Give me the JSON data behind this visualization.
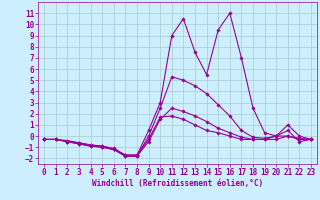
{
  "xlabel": "Windchill (Refroidissement éolien,°C)",
  "bg_color": "#cceeff",
  "grid_color": "#aacccc",
  "line_color": "#990099",
  "x": [
    0,
    1,
    2,
    3,
    4,
    5,
    6,
    7,
    8,
    9,
    10,
    11,
    12,
    13,
    14,
    15,
    16,
    17,
    18,
    19,
    20,
    21,
    22,
    23
  ],
  "series": [
    [
      -0.3,
      -0.3,
      -0.5,
      -0.6,
      -0.8,
      -0.9,
      -1.2,
      -1.7,
      -1.7,
      -0.3,
      1.7,
      1.8,
      1.5,
      1.0,
      0.5,
      0.3,
      0.0,
      -0.3,
      -0.3,
      -0.3,
      -0.3,
      0.0,
      -0.2,
      -0.3
    ],
    [
      -0.3,
      -0.3,
      -0.5,
      -0.7,
      -0.9,
      -1.0,
      -1.2,
      -1.8,
      -1.8,
      -0.5,
      1.5,
      2.5,
      2.2,
      1.8,
      1.3,
      0.7,
      0.3,
      -0.1,
      -0.3,
      -0.3,
      0.0,
      1.0,
      0.0,
      -0.3
    ],
    [
      -0.3,
      -0.3,
      -0.5,
      -0.7,
      -0.9,
      -1.0,
      -1.2,
      -1.8,
      -1.8,
      0.0,
      2.5,
      5.3,
      5.0,
      4.5,
      3.8,
      2.8,
      1.8,
      0.5,
      -0.1,
      -0.2,
      0.0,
      0.5,
      -0.5,
      -0.3
    ],
    [
      -0.3,
      -0.3,
      -0.4,
      -0.6,
      -0.8,
      -0.9,
      -1.1,
      -1.7,
      -1.7,
      0.5,
      3.0,
      9.0,
      10.5,
      7.5,
      5.5,
      9.5,
      11.0,
      7.0,
      2.5,
      0.3,
      0.0,
      0.0,
      -0.3,
      -0.3
    ]
  ],
  "ylim": [
    -2.5,
    12
  ],
  "xlim": [
    -0.5,
    23.5
  ],
  "yticks": [
    -2,
    -1,
    0,
    1,
    2,
    3,
    4,
    5,
    6,
    7,
    8,
    9,
    10,
    11
  ],
  "xticks": [
    0,
    1,
    2,
    3,
    4,
    5,
    6,
    7,
    8,
    9,
    10,
    11,
    12,
    13,
    14,
    15,
    16,
    17,
    18,
    19,
    20,
    21,
    22,
    23
  ],
  "marker": "D",
  "marker_size": 1.8,
  "line_width": 0.8,
  "xlabel_fontsize": 5.5,
  "tick_fontsize": 5.5
}
